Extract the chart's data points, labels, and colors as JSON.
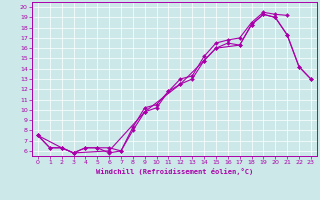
{
  "bg_color": "#cce8e8",
  "line_color": "#aa00aa",
  "marker": "D",
  "marker_size": 2.0,
  "linewidth": 0.8,
  "xlabel": "Windchill (Refroidissement éolien,°C)",
  "xlim": [
    -0.5,
    23.5
  ],
  "ylim": [
    5.5,
    20.5
  ],
  "xticks": [
    0,
    1,
    2,
    3,
    4,
    5,
    6,
    7,
    8,
    9,
    10,
    11,
    12,
    13,
    14,
    15,
    16,
    17,
    18,
    19,
    20,
    21,
    22,
    23
  ],
  "yticks": [
    6,
    7,
    8,
    9,
    10,
    11,
    12,
    13,
    14,
    15,
    16,
    17,
    18,
    19,
    20
  ],
  "line1_x": [
    0,
    1,
    2,
    3,
    4,
    5,
    6,
    7,
    8,
    9,
    10,
    11,
    12,
    13,
    14,
    15,
    16,
    17,
    18,
    19,
    20,
    21
  ],
  "line1_y": [
    7.5,
    6.3,
    6.3,
    5.8,
    6.3,
    6.3,
    6.3,
    6.0,
    8.3,
    10.2,
    10.5,
    11.8,
    13.0,
    13.3,
    15.2,
    16.5,
    16.8,
    17.0,
    18.5,
    19.5,
    19.3,
    19.2
  ],
  "line2_x": [
    0,
    1,
    2,
    3,
    4,
    5,
    6,
    7,
    8,
    9,
    10,
    11,
    12,
    13,
    14,
    15,
    16,
    17,
    18,
    19,
    20,
    21,
    22,
    23
  ],
  "line2_y": [
    7.5,
    6.3,
    6.3,
    5.8,
    6.3,
    6.3,
    5.8,
    6.0,
    8.0,
    9.8,
    10.2,
    11.8,
    12.5,
    13.0,
    14.8,
    16.0,
    16.5,
    16.3,
    18.3,
    19.3,
    19.0,
    17.3,
    14.2,
    13.0
  ],
  "line3_x": [
    0,
    2,
    3,
    6,
    9,
    12,
    14,
    15,
    17,
    18,
    19,
    20,
    21,
    22,
    23
  ],
  "line3_y": [
    7.5,
    6.3,
    5.8,
    6.0,
    9.8,
    12.5,
    14.8,
    16.0,
    16.3,
    18.3,
    19.3,
    19.0,
    17.3,
    14.2,
    13.0
  ]
}
